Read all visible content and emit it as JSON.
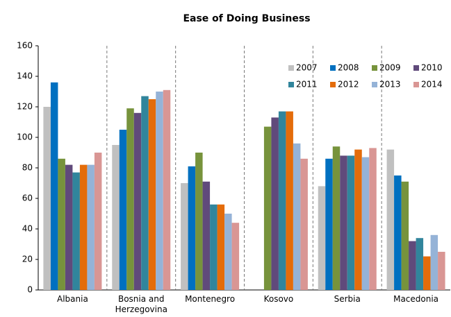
{
  "chart_data": {
    "type": "bar",
    "title": "Ease of Doing Business",
    "categories": [
      "Albania",
      "Bosnia and Herzegovina",
      "Montenegro",
      "Kosovo",
      "Serbia",
      "Macedonia"
    ],
    "series": [
      {
        "name": "2007",
        "color": "#c0c0c0",
        "values": [
          120,
          95,
          70,
          null,
          68,
          92
        ]
      },
      {
        "name": "2008",
        "color": "#0070c0",
        "values": [
          136,
          105,
          81,
          null,
          86,
          75
        ]
      },
      {
        "name": "2009",
        "color": "#77933c",
        "values": [
          86,
          119,
          90,
          107,
          94,
          71
        ]
      },
      {
        "name": "2010",
        "color": "#604a7b",
        "values": [
          82,
          116,
          71,
          113,
          88,
          32
        ]
      },
      {
        "name": "2011",
        "color": "#31859c",
        "values": [
          77,
          127,
          56,
          117,
          88,
          34
        ]
      },
      {
        "name": "2012",
        "color": "#e46c0a",
        "values": [
          82,
          125,
          56,
          117,
          92,
          22
        ]
      },
      {
        "name": "2013",
        "color": "#95b3d7",
        "values": [
          82,
          130,
          50,
          96,
          87,
          36
        ]
      },
      {
        "name": "2014",
        "color": "#d99694",
        "values": [
          90,
          131,
          44,
          86,
          93,
          25
        ]
      }
    ],
    "ylim": [
      0,
      160
    ],
    "yticks": [
      0,
      20,
      40,
      60,
      80,
      100,
      120,
      140,
      160
    ],
    "legend": "top-right"
  }
}
